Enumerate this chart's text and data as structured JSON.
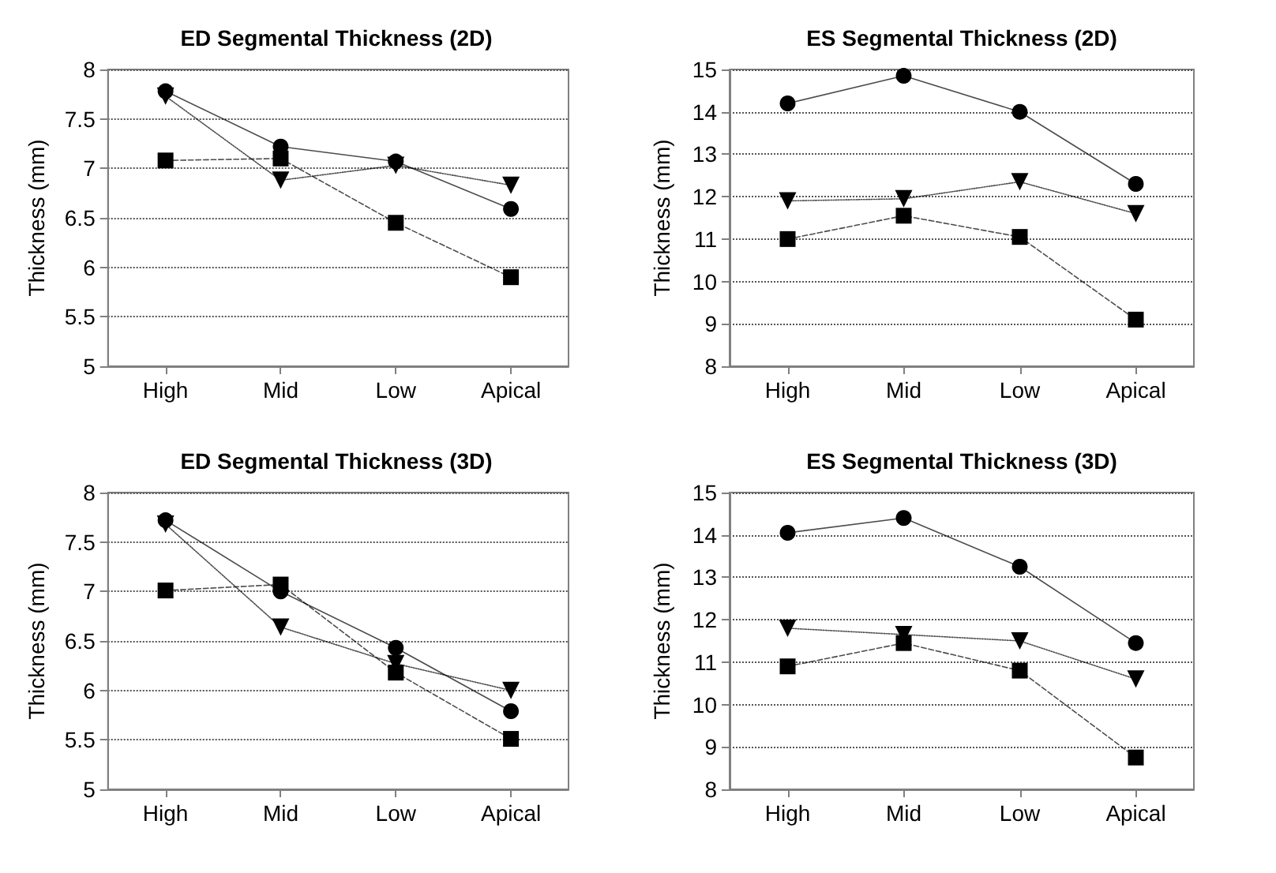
{
  "chart_data": [
    {
      "type": "line",
      "title": "ED Segmental Thickness (2D)",
      "ylabel": "Thickness (mm)",
      "categories": [
        "High",
        "Mid",
        "Low",
        "Apical"
      ],
      "ylim": [
        5,
        8
      ],
      "yticks": [
        5,
        5.5,
        6,
        6.5,
        7,
        7.5,
        8
      ],
      "grid": "y",
      "series": [
        {
          "color": "#000000",
          "marker": "circle",
          "line_style": "solid",
          "values": [
            7.78,
            7.22,
            7.07,
            6.59
          ]
        },
        {
          "color": "#000000",
          "marker": "triangle",
          "line_style": "dotted",
          "values": [
            7.73,
            6.88,
            7.03,
            6.83
          ]
        },
        {
          "color": "#000000",
          "marker": "square",
          "line_style": "dashed",
          "values": [
            7.08,
            7.1,
            6.45,
            5.9
          ]
        }
      ]
    },
    {
      "type": "line",
      "title": "ES Segmental Thickness (2D)",
      "ylabel": "Thickness (mm)",
      "categories": [
        "High",
        "Mid",
        "Low",
        "Apical"
      ],
      "ylim": [
        8,
        15
      ],
      "yticks": [
        8,
        9,
        10,
        11,
        12,
        13,
        14,
        15
      ],
      "grid": "y",
      "series": [
        {
          "color": "#000000",
          "marker": "circle",
          "line_style": "solid",
          "values": [
            14.2,
            14.85,
            14.0,
            12.3
          ]
        },
        {
          "color": "#000000",
          "marker": "triangle",
          "line_style": "dotted",
          "values": [
            11.9,
            11.95,
            12.35,
            11.6
          ]
        },
        {
          "color": "#000000",
          "marker": "square",
          "line_style": "dashed",
          "values": [
            11.0,
            11.55,
            11.05,
            9.1
          ]
        }
      ]
    },
    {
      "type": "line",
      "title": "ED Segmental Thickness (3D)",
      "ylabel": "Thickness (mm)",
      "categories": [
        "High",
        "Mid",
        "Low",
        "Apical"
      ],
      "ylim": [
        5,
        8
      ],
      "yticks": [
        5,
        5.5,
        6,
        6.5,
        7,
        7.5,
        8
      ],
      "grid": "y",
      "series": [
        {
          "color": "#000000",
          "marker": "circle",
          "line_style": "solid",
          "values": [
            7.72,
            7.0,
            6.43,
            5.79
          ]
        },
        {
          "color": "#000000",
          "marker": "triangle",
          "line_style": "dotted",
          "values": [
            7.68,
            6.64,
            6.27,
            6.0
          ]
        },
        {
          "color": "#000000",
          "marker": "square",
          "line_style": "dashed",
          "values": [
            7.01,
            7.07,
            6.18,
            5.51
          ]
        }
      ]
    },
    {
      "type": "line",
      "title": "ES Segmental Thickness (3D)",
      "ylabel": "Thickness (mm)",
      "categories": [
        "High",
        "Mid",
        "Low",
        "Apical"
      ],
      "ylim": [
        8,
        15
      ],
      "yticks": [
        8,
        9,
        10,
        11,
        12,
        13,
        14,
        15
      ],
      "grid": "y",
      "series": [
        {
          "color": "#000000",
          "marker": "circle",
          "line_style": "solid",
          "values": [
            14.05,
            14.4,
            13.25,
            11.45
          ]
        },
        {
          "color": "#000000",
          "marker": "triangle",
          "line_style": "dotted",
          "values": [
            11.8,
            11.65,
            11.5,
            10.6
          ]
        },
        {
          "color": "#000000",
          "marker": "square",
          "line_style": "dashed",
          "values": [
            10.9,
            11.45,
            10.8,
            8.75
          ]
        }
      ]
    }
  ]
}
